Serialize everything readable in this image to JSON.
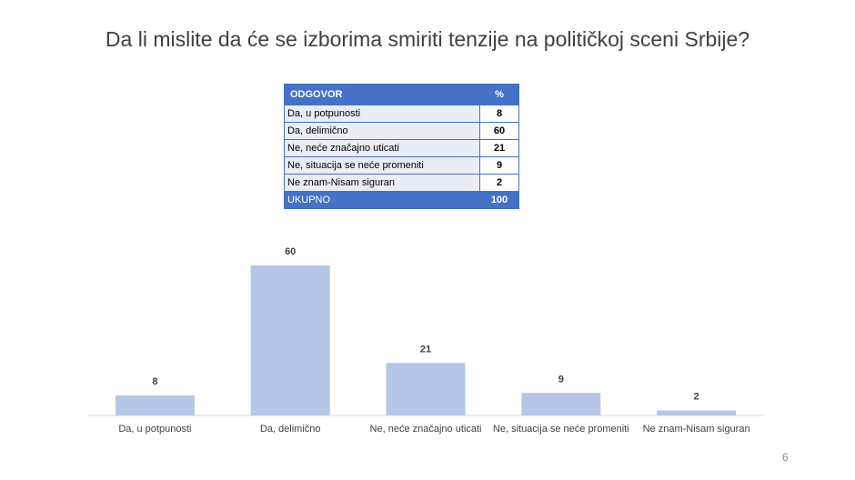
{
  "title": "Da li mislite da će se izborima smiriti tenzije na političkoj sceni Srbije?",
  "table": {
    "header": [
      "ODGOVOR",
      "%"
    ],
    "rows": [
      [
        "Da, u potpunosti",
        8
      ],
      [
        "Da, delimično",
        60
      ],
      [
        "Ne, neće značajno uticati",
        21
      ],
      [
        "Ne, situacija se neće promeniti",
        9
      ],
      [
        "Ne znam-Nisam siguran",
        2
      ]
    ],
    "total": [
      "UKUPNO",
      100
    ]
  },
  "chart_data": {
    "type": "bar",
    "categories": [
      "Da, u potpunosti",
      "Da, delimično",
      "Ne, neće značajno uticati",
      "Ne, situacija se neće promeniti",
      "Ne znam-Nisam siguran"
    ],
    "values": [
      8,
      60,
      21,
      9,
      2
    ],
    "color": "#b4c7e7"
  },
  "page_number": "6"
}
